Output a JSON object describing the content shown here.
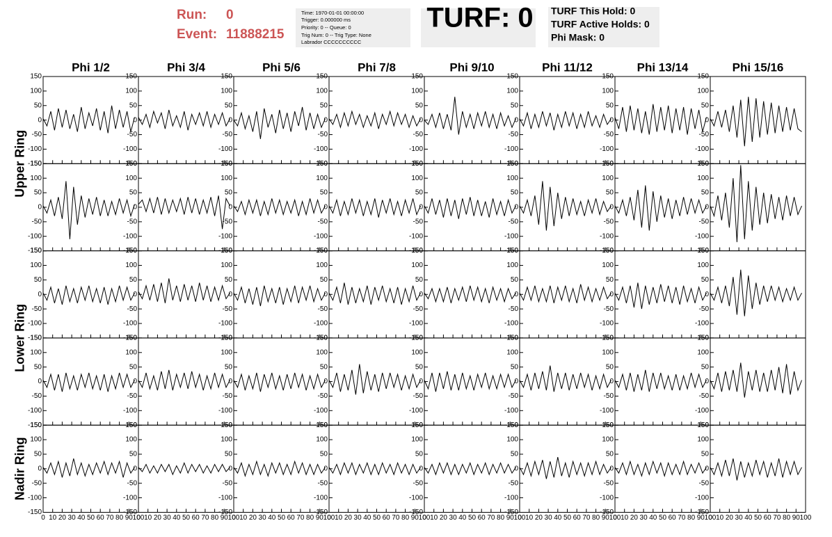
{
  "header": {
    "run_label": "Run:",
    "run": "0",
    "event_label": "Event:",
    "event": "11888215",
    "info": [
      "Time: 1970-01-01 00:00:00",
      "Trigger: 0.000000 ms",
      "Priority: 0 -- Queue: 0",
      "Trig Num: 0 -- Trig Type: None",
      "Labrador CCCCCCCCCC"
    ],
    "turf": "TURF: 0",
    "turf_info": [
      "TURF This Hold: 0",
      "TURF Active Holds: 0",
      "Phi Mask: 0"
    ]
  },
  "chart_data": {
    "type": "waveform-grid",
    "columns": [
      "Phi 1/2",
      "Phi 3/4",
      "Phi 5/6",
      "Phi 7/8",
      "Phi 9/10",
      "Phi 11/12",
      "Phi 13/14",
      "Phi 15/16"
    ],
    "ring_labels": [
      "Upper Ring",
      "Lower Ring",
      "Nadir Ring"
    ],
    "color": "#000000",
    "xlim": [
      0,
      100
    ],
    "xticks": [
      0,
      10,
      20,
      30,
      40,
      50,
      60,
      70,
      80,
      90,
      100
    ],
    "ylim": [
      -150,
      150
    ],
    "yticks": [
      -150,
      -100,
      -50,
      0,
      50,
      100,
      150
    ],
    "x": [
      0,
      4,
      8,
      12,
      16,
      20,
      24,
      28,
      32,
      36,
      40,
      44,
      48,
      52,
      56,
      60,
      64,
      68,
      72,
      76,
      80,
      84,
      88,
      92,
      96
    ],
    "panels": [
      [
        [
          5,
          -20,
          30,
          -35,
          40,
          -25,
          35,
          -30,
          20,
          -40,
          45,
          -30,
          25,
          -20,
          40,
          -35,
          30,
          -45,
          50,
          -30,
          35,
          -25,
          30,
          -40,
          10
        ],
        [
          10,
          -15,
          20,
          -25,
          30,
          -10,
          25,
          -30,
          35,
          -20,
          15,
          -25,
          30,
          -35,
          20,
          -15,
          25,
          -20,
          30,
          -25,
          20,
          -15,
          25,
          -20,
          5
        ],
        [
          0,
          -20,
          25,
          -30,
          15,
          -40,
          30,
          -65,
          40,
          -25,
          20,
          -45,
          35,
          -30,
          25,
          -40,
          30,
          -20,
          45,
          -35,
          25,
          -30,
          20,
          -25,
          5
        ],
        [
          5,
          -15,
          20,
          -25,
          25,
          -20,
          30,
          -15,
          20,
          -25,
          15,
          -20,
          25,
          -30,
          20,
          -15,
          30,
          -20,
          25,
          -15,
          20,
          -25,
          15,
          -20,
          5
        ],
        [
          0,
          -15,
          20,
          -25,
          25,
          -30,
          20,
          -35,
          80,
          -50,
          30,
          -25,
          20,
          -30,
          25,
          -20,
          30,
          -25,
          20,
          -30,
          25,
          -20,
          15,
          -25,
          5
        ],
        [
          5,
          -20,
          25,
          -30,
          20,
          -25,
          30,
          -20,
          25,
          -35,
          20,
          -25,
          30,
          -20,
          25,
          -30,
          20,
          -25,
          30,
          -20,
          15,
          -25,
          20,
          -15,
          5
        ],
        [
          10,
          -30,
          45,
          -40,
          50,
          -35,
          40,
          -45,
          30,
          -50,
          55,
          -40,
          45,
          -35,
          50,
          -45,
          40,
          -35,
          45,
          -50,
          40,
          -30,
          35,
          -40,
          10
        ],
        [
          5,
          -20,
          30,
          -25,
          35,
          -40,
          50,
          -60,
          70,
          -90,
          80,
          -75,
          75,
          -60,
          65,
          -50,
          60,
          -45,
          50,
          -40,
          45,
          -35,
          40,
          -30,
          -40
        ]
      ],
      [
        [
          5,
          -20,
          25,
          -30,
          35,
          -40,
          90,
          -110,
          70,
          -60,
          40,
          -35,
          30,
          -25,
          35,
          -30,
          25,
          -30,
          20,
          -25,
          30,
          -20,
          25,
          -30,
          10
        ],
        [
          10,
          25,
          -15,
          30,
          -20,
          35,
          -25,
          30,
          -20,
          25,
          -15,
          30,
          -25,
          35,
          -20,
          30,
          -25,
          25,
          -20,
          35,
          -30,
          40,
          -75,
          30,
          5
        ],
        [
          5,
          -15,
          20,
          -25,
          25,
          -20,
          25,
          -30,
          20,
          -25,
          30,
          -20,
          25,
          -25,
          20,
          -20,
          25,
          -30,
          20,
          -25,
          30,
          -20,
          25,
          -20,
          5
        ],
        [
          5,
          -20,
          25,
          -30,
          20,
          -25,
          30,
          -20,
          25,
          -30,
          20,
          -25,
          30,
          -35,
          25,
          -20,
          30,
          -25,
          20,
          -30,
          25,
          -20,
          30,
          -25,
          5
        ],
        [
          5,
          -20,
          30,
          -25,
          25,
          -35,
          30,
          -30,
          25,
          -40,
          30,
          -25,
          35,
          -30,
          25,
          -30,
          20,
          -35,
          30,
          -25,
          20,
          -30,
          25,
          -20,
          5
        ],
        [
          5,
          -20,
          25,
          -30,
          40,
          -60,
          90,
          -80,
          70,
          -65,
          50,
          -40,
          35,
          -30,
          30,
          -25,
          20,
          -30,
          25,
          -20,
          30,
          -25,
          20,
          -15,
          5
        ],
        [
          5,
          -20,
          25,
          -30,
          35,
          -45,
          60,
          -70,
          75,
          -80,
          55,
          -50,
          40,
          -35,
          30,
          -40,
          25,
          -30,
          35,
          -25,
          30,
          -20,
          25,
          -20,
          5
        ],
        [
          5,
          -30,
          40,
          -45,
          50,
          -70,
          100,
          -120,
          145,
          -110,
          90,
          -80,
          70,
          -60,
          50,
          -55,
          45,
          -40,
          35,
          -45,
          40,
          -30,
          35,
          -25,
          5
        ]
      ],
      [
        [
          5,
          -20,
          25,
          -30,
          20,
          -35,
          30,
          -25,
          20,
          -30,
          25,
          -20,
          30,
          -25,
          20,
          -30,
          25,
          -35,
          20,
          -25,
          30,
          -20,
          25,
          -20,
          5
        ],
        [
          10,
          -15,
          30,
          -20,
          35,
          -25,
          40,
          -30,
          55,
          -20,
          30,
          -25,
          35,
          -20,
          30,
          -25,
          40,
          -20,
          30,
          -25,
          25,
          -20,
          30,
          -15,
          5
        ],
        [
          5,
          -20,
          25,
          -30,
          20,
          -35,
          25,
          -40,
          30,
          -25,
          20,
          -30,
          25,
          -35,
          20,
          -25,
          30,
          -30,
          25,
          -20,
          30,
          -25,
          20,
          -20,
          5
        ],
        [
          5,
          -20,
          25,
          -30,
          40,
          -35,
          25,
          -30,
          20,
          -25,
          30,
          -35,
          25,
          -20,
          30,
          -25,
          20,
          -30,
          25,
          -35,
          20,
          -25,
          30,
          -20,
          5
        ],
        [
          5,
          -15,
          20,
          -25,
          20,
          -25,
          25,
          -30,
          20,
          -20,
          25,
          -25,
          30,
          -20,
          25,
          -25,
          20,
          -30,
          25,
          -20,
          20,
          -25,
          20,
          -15,
          5
        ],
        [
          5,
          -20,
          25,
          -20,
          30,
          -25,
          20,
          -25,
          30,
          -30,
          25,
          -20,
          30,
          -25,
          20,
          -30,
          35,
          -20,
          25,
          -25,
          20,
          -20,
          25,
          -15,
          5
        ],
        [
          5,
          -20,
          25,
          -30,
          30,
          -45,
          40,
          -50,
          30,
          -35,
          25,
          -30,
          35,
          -25,
          30,
          -30,
          25,
          -35,
          30,
          -25,
          20,
          -30,
          25,
          -20,
          5
        ],
        [
          5,
          -20,
          25,
          -30,
          30,
          -40,
          60,
          -70,
          85,
          -75,
          65,
          -50,
          40,
          -35,
          30,
          -25,
          30,
          -20,
          25,
          -25,
          20,
          -20,
          25,
          -20,
          5
        ]
      ],
      [
        [
          5,
          -20,
          25,
          -30,
          25,
          -35,
          30,
          -25,
          20,
          -30,
          25,
          -20,
          30,
          -25,
          20,
          -30,
          25,
          -35,
          20,
          -25,
          30,
          -20,
          25,
          -20,
          5
        ],
        [
          5,
          -20,
          30,
          -25,
          20,
          -30,
          35,
          -25,
          40,
          -30,
          25,
          -20,
          30,
          -25,
          35,
          -20,
          25,
          -30,
          20,
          -25,
          30,
          -20,
          25,
          -20,
          5
        ],
        [
          5,
          -20,
          25,
          -30,
          20,
          -25,
          30,
          -35,
          25,
          -20,
          30,
          -25,
          20,
          -30,
          25,
          -25,
          30,
          -20,
          25,
          -30,
          20,
          -25,
          25,
          -20,
          5
        ],
        [
          5,
          -20,
          30,
          -35,
          25,
          -30,
          40,
          -45,
          60,
          -40,
          35,
          -30,
          25,
          -35,
          30,
          -25,
          30,
          -20,
          25,
          -30,
          20,
          -25,
          25,
          -20,
          5
        ],
        [
          5,
          -25,
          30,
          -35,
          30,
          -25,
          35,
          -30,
          25,
          -30,
          30,
          -25,
          20,
          -30,
          25,
          -20,
          30,
          -25,
          20,
          -25,
          25,
          -20,
          25,
          -20,
          5
        ],
        [
          5,
          -20,
          25,
          -30,
          30,
          -25,
          35,
          -30,
          55,
          -35,
          30,
          -25,
          30,
          -30,
          25,
          -25,
          30,
          -20,
          25,
          -30,
          20,
          -25,
          25,
          -20,
          5
        ],
        [
          5,
          -20,
          25,
          -30,
          30,
          -35,
          25,
          -30,
          40,
          -35,
          30,
          -25,
          30,
          -25,
          20,
          -30,
          25,
          -30,
          20,
          -25,
          30,
          -20,
          25,
          -20,
          5
        ],
        [
          5,
          -25,
          30,
          -35,
          35,
          -30,
          40,
          -35,
          65,
          -55,
          35,
          -30,
          40,
          -35,
          30,
          -35,
          40,
          -30,
          50,
          -40,
          60,
          -45,
          35,
          -30,
          5
        ]
      ],
      [
        [
          5,
          -15,
          20,
          -20,
          25,
          -30,
          20,
          -25,
          35,
          -20,
          20,
          -25,
          15,
          -20,
          20,
          -15,
          25,
          -20,
          20,
          -15,
          25,
          -30,
          20,
          -15,
          5
        ],
        [
          5,
          -10,
          15,
          -15,
          10,
          -15,
          15,
          -10,
          15,
          -20,
          10,
          -15,
          20,
          -15,
          15,
          -10,
          15,
          -15,
          10,
          -15,
          15,
          -10,
          15,
          -10,
          5
        ],
        [
          5,
          -15,
          20,
          -25,
          15,
          -20,
          25,
          -20,
          15,
          -25,
          20,
          -15,
          20,
          -20,
          15,
          -20,
          25,
          -15,
          20,
          -20,
          15,
          -20,
          15,
          -15,
          5
        ],
        [
          5,
          -15,
          15,
          -20,
          20,
          -15,
          20,
          -20,
          15,
          -15,
          20,
          -20,
          15,
          -20,
          20,
          -15,
          15,
          -20,
          20,
          -15,
          15,
          -20,
          15,
          -15,
          5
        ],
        [
          5,
          -15,
          15,
          -20,
          20,
          -15,
          20,
          -20,
          15,
          -20,
          15,
          -15,
          20,
          -20,
          15,
          -15,
          20,
          -20,
          15,
          -15,
          20,
          -15,
          15,
          -15,
          5
        ],
        [
          5,
          -20,
          20,
          -25,
          25,
          -20,
          30,
          -35,
          25,
          -30,
          40,
          -25,
          20,
          -30,
          25,
          -20,
          20,
          -25,
          20,
          -20,
          25,
          -20,
          15,
          -15,
          5
        ],
        [
          5,
          -15,
          20,
          -20,
          25,
          -20,
          15,
          -25,
          20,
          -20,
          25,
          -15,
          20,
          -25,
          20,
          -20,
          15,
          -20,
          25,
          -20,
          15,
          -15,
          20,
          -15,
          5
        ],
        [
          5,
          -20,
          20,
          -25,
          30,
          -25,
          35,
          -40,
          25,
          -30,
          20,
          -25,
          30,
          -20,
          25,
          -30,
          20,
          -25,
          35,
          -30,
          25,
          -20,
          25,
          -20,
          5
        ]
      ]
    ]
  }
}
